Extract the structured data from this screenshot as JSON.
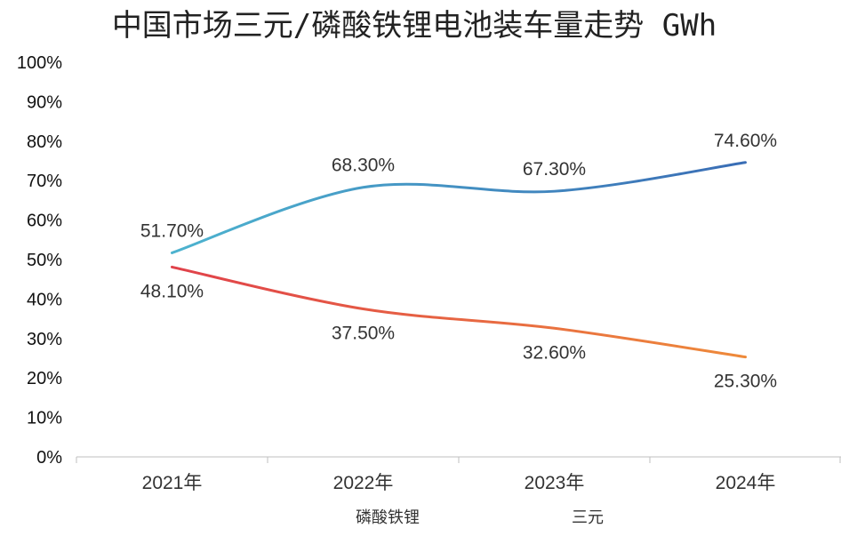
{
  "chart_data": {
    "type": "line",
    "title": "中国市场三元/磷酸铁锂电池装车量走势 GWh",
    "categories": [
      "2021年",
      "2022年",
      "2023年",
      "2024年"
    ],
    "ylim": [
      0,
      100
    ],
    "yticks": [
      "0%",
      "10%",
      "20%",
      "30%",
      "40%",
      "50%",
      "60%",
      "70%",
      "80%",
      "90%",
      "100%"
    ],
    "legend_position": "bottom",
    "series": [
      {
        "name": "磷酸铁锂",
        "values": [
          51.7,
          68.3,
          67.3,
          74.6
        ],
        "labels": [
          "51.70%",
          "68.30%",
          "67.30%",
          "74.60%"
        ],
        "color_start": "#4db3cf",
        "color_end": "#3a6db5"
      },
      {
        "name": "三元",
        "values": [
          48.1,
          37.5,
          32.6,
          25.3
        ],
        "labels": [
          "48.10%",
          "37.50%",
          "32.60%",
          "25.30%"
        ],
        "color_start": "#e0414a",
        "color_end": "#ee8a3a"
      }
    ]
  }
}
